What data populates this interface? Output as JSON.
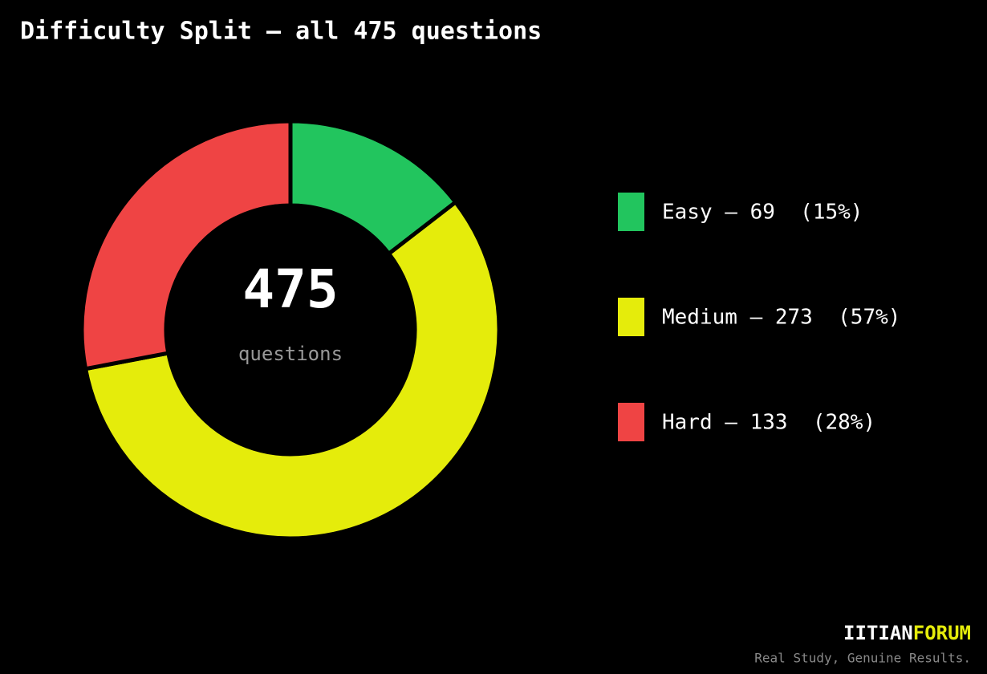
{
  "chart_data": {
    "type": "donut",
    "title": "Difficulty Split — all 475 questions",
    "categories": [
      "Easy — 69  (15%)",
      "Medium — 273  (57%)",
      "Hard — 133  (28%)"
    ],
    "values": [
      69,
      273,
      133
    ],
    "colors": [
      "#22c55e",
      "#e5ec0b",
      "#ef4444"
    ],
    "center_value": 475,
    "center_label": "questions"
  },
  "brand": {
    "name_first": "IITIAN",
    "name_second": "FORUM",
    "tagline": "Real Study, Genuine Results."
  }
}
